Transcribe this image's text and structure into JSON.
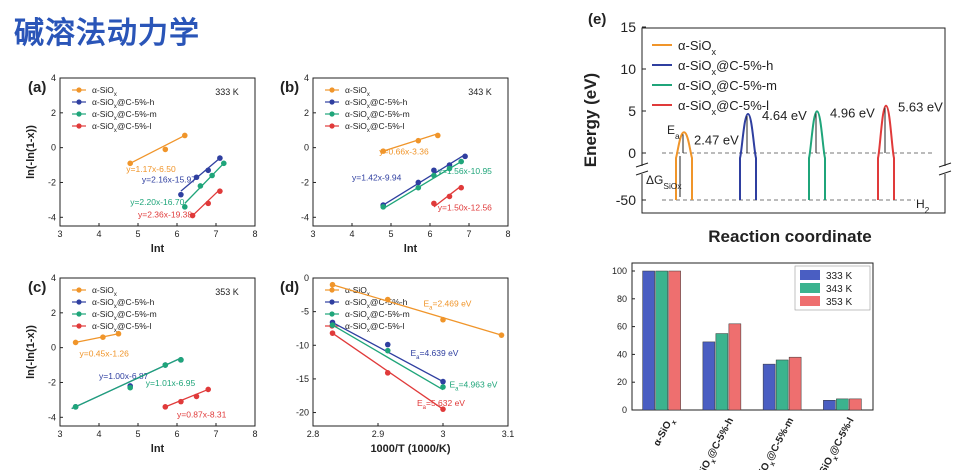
{
  "page": {
    "title": "碱溶法动力学"
  },
  "colors": {
    "orange": "#f0952a",
    "blue": "#2f3fa0",
    "green": "#1fa57a",
    "red": "#e03a3a",
    "bar_blue": "#4a5ec2",
    "bar_green": "#3bb38e",
    "bar_red": "#ee6f6f"
  },
  "chart_data": [
    {
      "panel_label": "(a)",
      "type": "scatter",
      "temperature_label": "333 K",
      "xlabel": "lnt",
      "ylabel": "ln(-ln(1-x))",
      "xlim": [
        3,
        8
      ],
      "ylim": [
        -4.5,
        4
      ],
      "xticks": [
        3,
        4,
        5,
        6,
        7,
        8
      ],
      "yticks": [
        -4,
        -2,
        0,
        2,
        4
      ],
      "legend": [
        "α-SiOx",
        "α-SiOx@C-5%-h",
        "α-SiOx@C-5%-m",
        "α-SiOx@C-5%-l"
      ],
      "series": [
        {
          "name": "α-SiOx",
          "color": "orange",
          "points": [
            [
              4.8,
              -0.9
            ],
            [
              5.7,
              -0.1
            ],
            [
              6.2,
              0.7
            ]
          ],
          "fit": [
            [
              4.8,
              -0.9
            ],
            [
              6.2,
              0.7
            ]
          ],
          "eq": "y=1.17x-6.50",
          "eq_pos": [
            4.7,
            -1.4
          ]
        },
        {
          "name": "α-SiOx@C-5%-h",
          "color": "blue",
          "points": [
            [
              6.1,
              -2.7
            ],
            [
              6.5,
              -1.7
            ],
            [
              6.8,
              -1.3
            ],
            [
              7.1,
              -0.6
            ]
          ],
          "fit": [
            [
              6.1,
              -2.5
            ],
            [
              7.1,
              -0.6
            ]
          ],
          "eq": "y=2.16x-15.97",
          "eq_pos": [
            5.1,
            -2.0
          ]
        },
        {
          "name": "α-SiOx@C-5%-m",
          "color": "green",
          "points": [
            [
              6.2,
              -3.4
            ],
            [
              6.6,
              -2.2
            ],
            [
              6.9,
              -1.6
            ],
            [
              7.2,
              -0.9
            ]
          ],
          "fit": [
            [
              6.2,
              -3.2
            ],
            [
              7.2,
              -0.9
            ]
          ],
          "eq": "y=2.20x-16.70",
          "eq_pos": [
            4.8,
            -3.3
          ]
        },
        {
          "name": "α-SiOx@C-5%-l",
          "color": "red",
          "points": [
            [
              6.4,
              -3.9
            ],
            [
              6.8,
              -3.2
            ],
            [
              7.1,
              -2.5
            ]
          ],
          "fit": [
            [
              6.4,
              -3.9
            ],
            [
              7.1,
              -2.4
            ]
          ],
          "eq": "y=2.36x-19.38",
          "eq_pos": [
            5.0,
            -4.0
          ]
        }
      ]
    },
    {
      "panel_label": "(b)",
      "type": "scatter",
      "temperature_label": "343 K",
      "xlabel": "lnt",
      "ylabel": "",
      "xlim": [
        3,
        8
      ],
      "ylim": [
        -4.5,
        4
      ],
      "xticks": [
        3,
        4,
        5,
        6,
        7,
        8
      ],
      "yticks": [
        -4,
        -2,
        0,
        2,
        4
      ],
      "legend": [
        "α-SiOx",
        "α-SiOx@C-5%-h",
        "α-SiOx@C-5%-m",
        "α-SiOx@C-5%-l"
      ],
      "series": [
        {
          "name": "α-SiOx",
          "color": "orange",
          "points": [
            [
              4.8,
              -0.2
            ],
            [
              5.7,
              0.4
            ],
            [
              6.2,
              0.7
            ]
          ],
          "fit": [
            [
              4.8,
              -0.2
            ],
            [
              6.2,
              0.8
            ]
          ],
          "eq": "y=0.66x-3.36",
          "eq_pos": [
            4.7,
            -0.4
          ]
        },
        {
          "name": "α-SiOx@C-5%-h",
          "color": "blue",
          "points": [
            [
              4.8,
              -3.3
            ],
            [
              5.7,
              -2.0
            ],
            [
              6.1,
              -1.3
            ],
            [
              6.5,
              -1.0
            ],
            [
              6.9,
              -0.5
            ]
          ],
          "fit": [
            [
              4.8,
              -3.3
            ],
            [
              6.9,
              -0.4
            ]
          ],
          "eq": "y=1.42x-9.94",
          "eq_pos": [
            4.0,
            -1.9
          ]
        },
        {
          "name": "α-SiOx@C-5%-m",
          "color": "green",
          "points": [
            [
              4.8,
              -3.4
            ],
            [
              5.7,
              -2.3
            ],
            [
              6.1,
              -1.6
            ],
            [
              6.5,
              -1.2
            ],
            [
              6.8,
              -0.8
            ]
          ],
          "fit": [
            [
              4.8,
              -3.5
            ],
            [
              6.8,
              -0.8
            ]
          ],
          "eq": "y=1.56x-10.95",
          "eq_pos": [
            6.2,
            -1.5
          ]
        },
        {
          "name": "α-SiOx@C-5%-l",
          "color": "red",
          "points": [
            [
              6.1,
              -3.2
            ],
            [
              6.5,
              -2.8
            ],
            [
              6.8,
              -2.3
            ]
          ],
          "fit": [
            [
              6.1,
              -3.4
            ],
            [
              6.8,
              -2.2
            ]
          ],
          "eq": "y=1.50x-12.56",
          "eq_pos": [
            6.2,
            -3.6
          ]
        }
      ]
    },
    {
      "panel_label": "(c)",
      "type": "scatter",
      "temperature_label": "353 K",
      "xlabel": "lnt",
      "ylabel": "ln(-ln(1-x))",
      "xlim": [
        3,
        8
      ],
      "ylim": [
        -4.5,
        4
      ],
      "xticks": [
        3,
        4,
        5,
        6,
        7,
        8
      ],
      "yticks": [
        -4,
        -2,
        0,
        2,
        4
      ],
      "legend": [
        "α-SiOx",
        "α-SiOx@C-5%-h",
        "α-SiOx@C-5%-m",
        "α-SiOx@C-5%-l"
      ],
      "series": [
        {
          "name": "α-SiOx",
          "color": "orange",
          "points": [
            [
              3.4,
              0.3
            ],
            [
              4.1,
              0.6
            ],
            [
              4.5,
              0.8
            ]
          ],
          "fit": [
            [
              3.4,
              0.3
            ],
            [
              4.5,
              0.8
            ]
          ],
          "eq": "y=0.45x-1.26",
          "eq_pos": [
            3.5,
            -0.5
          ]
        },
        {
          "name": "α-SiOx@C-5%-h",
          "color": "blue",
          "points": [
            [
              3.4,
              -3.4
            ],
            [
              4.8,
              -2.2
            ],
            [
              5.7,
              -1.0
            ],
            [
              6.1,
              -0.7
            ]
          ],
          "fit": [
            [
              3.3,
              -3.5
            ],
            [
              6.1,
              -0.6
            ]
          ],
          "eq": "y=1.00x-6.87",
          "eq_pos": [
            4.0,
            -1.8
          ]
        },
        {
          "name": "α-SiOx@C-5%-m",
          "color": "green",
          "points": [
            [
              3.4,
              -3.4
            ],
            [
              4.8,
              -2.3
            ],
            [
              5.7,
              -1.0
            ],
            [
              6.1,
              -0.7
            ]
          ],
          "fit": [
            [
              3.3,
              -3.5
            ],
            [
              6.1,
              -0.6
            ]
          ],
          "eq": "y=1.01x-6.95",
          "eq_pos": [
            5.2,
            -2.2
          ]
        },
        {
          "name": "α-SiOx@C-5%-l",
          "color": "red",
          "points": [
            [
              5.7,
              -3.4
            ],
            [
              6.1,
              -3.1
            ],
            [
              6.5,
              -2.8
            ],
            [
              6.8,
              -2.4
            ]
          ],
          "fit": [
            [
              5.7,
              -3.4
            ],
            [
              6.8,
              -2.4
            ]
          ],
          "eq": "y=0.87x-8.31",
          "eq_pos": [
            6.0,
            -4.0
          ]
        }
      ]
    },
    {
      "panel_label": "(d)",
      "type": "scatter",
      "xlabel": "1000/T (1000/K)",
      "ylabel": "",
      "xlim": [
        2.8,
        3.1
      ],
      "ylim": [
        -22,
        0
      ],
      "xticks": [
        2.8,
        2.9,
        3.0,
        3.1
      ],
      "yticks": [
        -20,
        -15,
        -10,
        -5,
        0
      ],
      "legend": [
        "α-SiOx",
        "α-SiOx@C-5%-h",
        "α-SiOx@C-5%-m",
        "α-SiOx@C-5%-l"
      ],
      "series": [
        {
          "name": "α-SiOx",
          "color": "orange",
          "points": [
            [
              2.83,
              -1.0
            ],
            [
              2.915,
              -3.2
            ],
            [
              3.0,
              -6.2
            ],
            [
              3.09,
              -8.5
            ]
          ],
          "fit": [
            [
              2.83,
              -1.0
            ],
            [
              3.09,
              -8.5
            ]
          ],
          "eq": "Ea=2.469 eV",
          "eq_pos": [
            2.97,
            -4.2
          ]
        },
        {
          "name": "α-SiOx@C-5%-h",
          "color": "blue",
          "points": [
            [
              2.83,
              -6.6
            ],
            [
              2.915,
              -9.9
            ],
            [
              3.0,
              -15.4
            ]
          ],
          "fit": [
            [
              2.83,
              -6.6
            ],
            [
              3.0,
              -15.4
            ]
          ],
          "eq": "Ea=4.639 eV",
          "eq_pos": [
            2.95,
            -11.6
          ]
        },
        {
          "name": "α-SiOx@C-5%-m",
          "color": "green",
          "points": [
            [
              2.83,
              -7.0
            ],
            [
              2.915,
              -10.8
            ],
            [
              3.0,
              -16.2
            ]
          ],
          "fit": [
            [
              2.83,
              -7.0
            ],
            [
              3.0,
              -16.6
            ]
          ],
          "eq": "Ea=4.963 eV",
          "eq_pos": [
            3.01,
            -16.3
          ]
        },
        {
          "name": "α-SiOx@C-5%-l",
          "color": "red",
          "points": [
            [
              2.83,
              -8.2
            ],
            [
              2.915,
              -14.1
            ],
            [
              3.0,
              -19.5
            ]
          ],
          "fit": [
            [
              2.83,
              -8.2
            ],
            [
              3.0,
              -19.5
            ]
          ],
          "eq": "Ea=5.632 eV",
          "eq_pos": [
            2.96,
            -19.0
          ]
        }
      ]
    },
    {
      "panel_label": "(e)",
      "type": "line",
      "xlabel": "Reaction coordinate",
      "ylabel": "Energy (eV)",
      "yticks": [
        15,
        10,
        5,
        0,
        -50
      ],
      "legend": [
        "α-SiOx",
        "α-SiOx@C-5%-h",
        "α-SiOx@C-5%-m",
        "α-SiOx@C-5%-l"
      ],
      "ea_label": "Ea",
      "dg_label": "ΔGSiOx",
      "h2_label": "H2",
      "barriers": [
        {
          "name": "α-SiOx",
          "color": "orange",
          "value": 2.47,
          "label": "2.47 eV"
        },
        {
          "name": "α-SiOx@C-5%-h",
          "color": "blue",
          "value": 4.64,
          "label": "4.64 eV"
        },
        {
          "name": "α-SiOx@C-5%-m",
          "color": "green",
          "value": 4.96,
          "label": "4.96 eV"
        },
        {
          "name": "α-SiOx@C-5%-l",
          "color": "red",
          "value": 5.63,
          "label": "5.63 eV"
        }
      ]
    },
    {
      "panel_label": "",
      "type": "bar",
      "categories": [
        "α-SiOx",
        "α-SiOx@C-5%-h",
        "α-SiOx@C-5%-m",
        "α-SiOx@C-5%-l"
      ],
      "ylim": [
        0,
        100
      ],
      "yticks": [
        0,
        20,
        40,
        60,
        80,
        100
      ],
      "series": [
        {
          "name": "333 K",
          "color": "bar_blue",
          "values": [
            100,
            49,
            33,
            7
          ]
        },
        {
          "name": "343 K",
          "color": "bar_green",
          "values": [
            100,
            55,
            36,
            8
          ]
        },
        {
          "name": "353 K",
          "color": "bar_red",
          "values": [
            100,
            62,
            38,
            8
          ]
        }
      ]
    }
  ]
}
